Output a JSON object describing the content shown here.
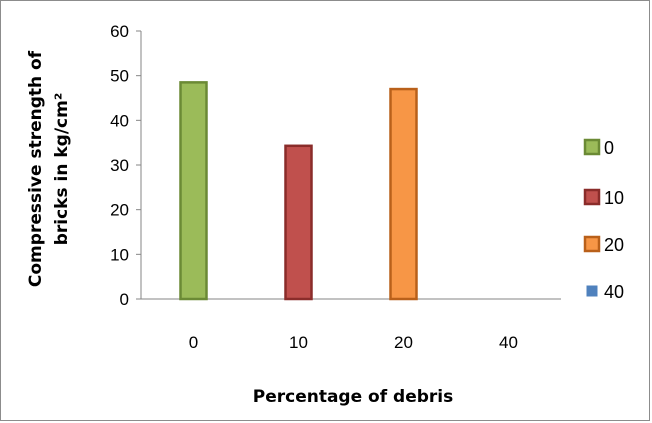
{
  "chart_data": {
    "type": "bar",
    "categories": [
      "0",
      "10",
      "20",
      "40"
    ],
    "values": [
      48.5,
      34.3,
      47.0,
      0
    ],
    "colors": [
      "#9bbb59",
      "#c0504d",
      "#f79646",
      "#4f81bd"
    ],
    "stroke_colors": [
      "#6b8a35",
      "#8a2c2a",
      "#b9601a",
      "#3a5f8f"
    ],
    "title": "",
    "xlabel": "Percentage of debris",
    "ylabel_lines": [
      "Compressive strength of",
      "bricks in kg/cm²"
    ],
    "ylim": [
      0,
      60
    ],
    "yticks": [
      "0",
      "10",
      "20",
      "30",
      "40",
      "50",
      "60"
    ],
    "legend": {
      "position": "right",
      "entries": [
        "0",
        "10",
        "20",
        "40"
      ]
    },
    "grid": false
  }
}
